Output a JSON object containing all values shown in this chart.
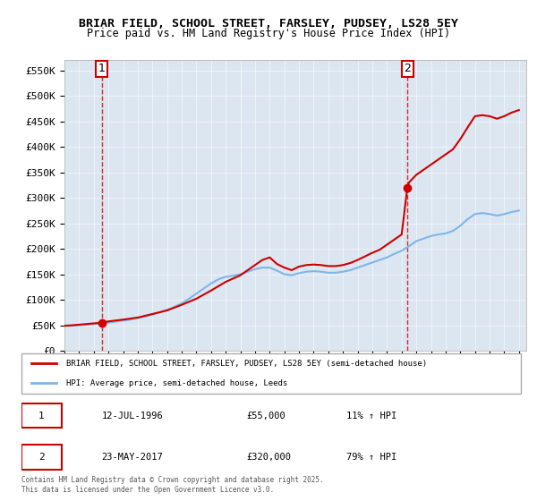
{
  "title_line1": "BRIAR FIELD, SCHOOL STREET, FARSLEY, PUDSEY, LS28 5EY",
  "title_line2": "Price paid vs. HM Land Registry's House Price Index (HPI)",
  "ylim": [
    0,
    570000
  ],
  "yticks": [
    0,
    50000,
    100000,
    150000,
    200000,
    250000,
    300000,
    350000,
    400000,
    450000,
    500000,
    550000
  ],
  "ytick_labels": [
    "£0",
    "£50K",
    "£100K",
    "£150K",
    "£200K",
    "£250K",
    "£300K",
    "£350K",
    "£400K",
    "£450K",
    "£500K",
    "£550K"
  ],
  "background_hatch_color": "#dce6f1",
  "background_color": "#ffffff",
  "hpi_color": "#7eb6e8",
  "price_color": "#cc0000",
  "marker_color": "#cc0000",
  "dashed_line_color": "#cc0000",
  "legend_label_price": "BRIAR FIELD, SCHOOL STREET, FARSLEY, PUDSEY, LS28 5EY (semi-detached house)",
  "legend_label_hpi": "HPI: Average price, semi-detached house, Leeds",
  "annotation1_label": "1",
  "annotation1_date": "12-JUL-1996",
  "annotation1_price": "£55,000",
  "annotation1_hpi": "11% ↑ HPI",
  "annotation2_label": "2",
  "annotation2_date": "23-MAY-2017",
  "annotation2_price": "£320,000",
  "annotation2_hpi": "79% ↑ HPI",
  "copyright_text": "Contains HM Land Registry data © Crown copyright and database right 2025.\nThis data is licensed under the Open Government Licence v3.0.",
  "sale1_year": 1996.54,
  "sale1_value": 55000,
  "sale2_year": 2017.39,
  "sale2_value": 320000,
  "hpi_years": [
    1994,
    1994.5,
    1995,
    1995.5,
    1996,
    1996.5,
    1997,
    1997.5,
    1998,
    1998.5,
    1999,
    1999.5,
    2000,
    2000.5,
    2001,
    2001.5,
    2002,
    2002.5,
    2003,
    2003.5,
    2004,
    2004.5,
    2005,
    2005.5,
    2006,
    2006.5,
    2007,
    2007.5,
    2008,
    2008.5,
    2009,
    2009.5,
    2010,
    2010.5,
    2011,
    2011.5,
    2012,
    2012.5,
    2013,
    2013.5,
    2014,
    2014.5,
    2015,
    2015.5,
    2016,
    2016.5,
    2017,
    2017.5,
    2018,
    2018.5,
    2019,
    2019.5,
    2020,
    2020.5,
    2021,
    2021.5,
    2022,
    2022.5,
    2023,
    2023.5,
    2024,
    2024.5,
    2025
  ],
  "hpi_values": [
    49000,
    49500,
    50000,
    51000,
    52000,
    53500,
    55000,
    57000,
    59000,
    61000,
    64000,
    67000,
    71000,
    75000,
    80000,
    86000,
    93000,
    102000,
    112000,
    122000,
    132000,
    140000,
    145000,
    147000,
    150000,
    155000,
    160000,
    163000,
    163000,
    157000,
    150000,
    148000,
    152000,
    155000,
    156000,
    155000,
    153000,
    153000,
    155000,
    158000,
    163000,
    168000,
    173000,
    178000,
    183000,
    190000,
    196000,
    205000,
    215000,
    220000,
    225000,
    228000,
    230000,
    235000,
    245000,
    258000,
    268000,
    270000,
    268000,
    265000,
    268000,
    272000,
    275000
  ],
  "price_years": [
    1994,
    1994.4,
    1996.54,
    1996.54,
    1997,
    1998,
    1999,
    2000,
    2001,
    2002,
    2003,
    2004,
    2005,
    2006,
    2007,
    2007.5,
    2008,
    2008.5,
    2009,
    2009.5,
    2010,
    2010.5,
    2011,
    2011.5,
    2012,
    2012.5,
    2013,
    2013.5,
    2014,
    2014.5,
    2015,
    2015.5,
    2016,
    2016.5,
    2017,
    2017.39,
    2017.39,
    2017.5,
    2018,
    2018.5,
    2019,
    2019.5,
    2020,
    2020.5,
    2021,
    2021.5,
    2022,
    2022.5,
    2023,
    2023.5,
    2024,
    2024.5,
    2025
  ],
  "price_values": [
    49000,
    49500,
    55000,
    55000,
    57500,
    61000,
    65000,
    72000,
    79000,
    90000,
    102000,
    118000,
    135000,
    148000,
    168000,
    178000,
    183000,
    170000,
    163000,
    158000,
    165000,
    168000,
    169000,
    168000,
    166000,
    166000,
    168000,
    172000,
    178000,
    185000,
    192000,
    198000,
    208000,
    218000,
    228000,
    320000,
    320000,
    330000,
    345000,
    355000,
    365000,
    375000,
    385000,
    395000,
    415000,
    438000,
    460000,
    462000,
    460000,
    455000,
    460000,
    467000,
    472000
  ]
}
